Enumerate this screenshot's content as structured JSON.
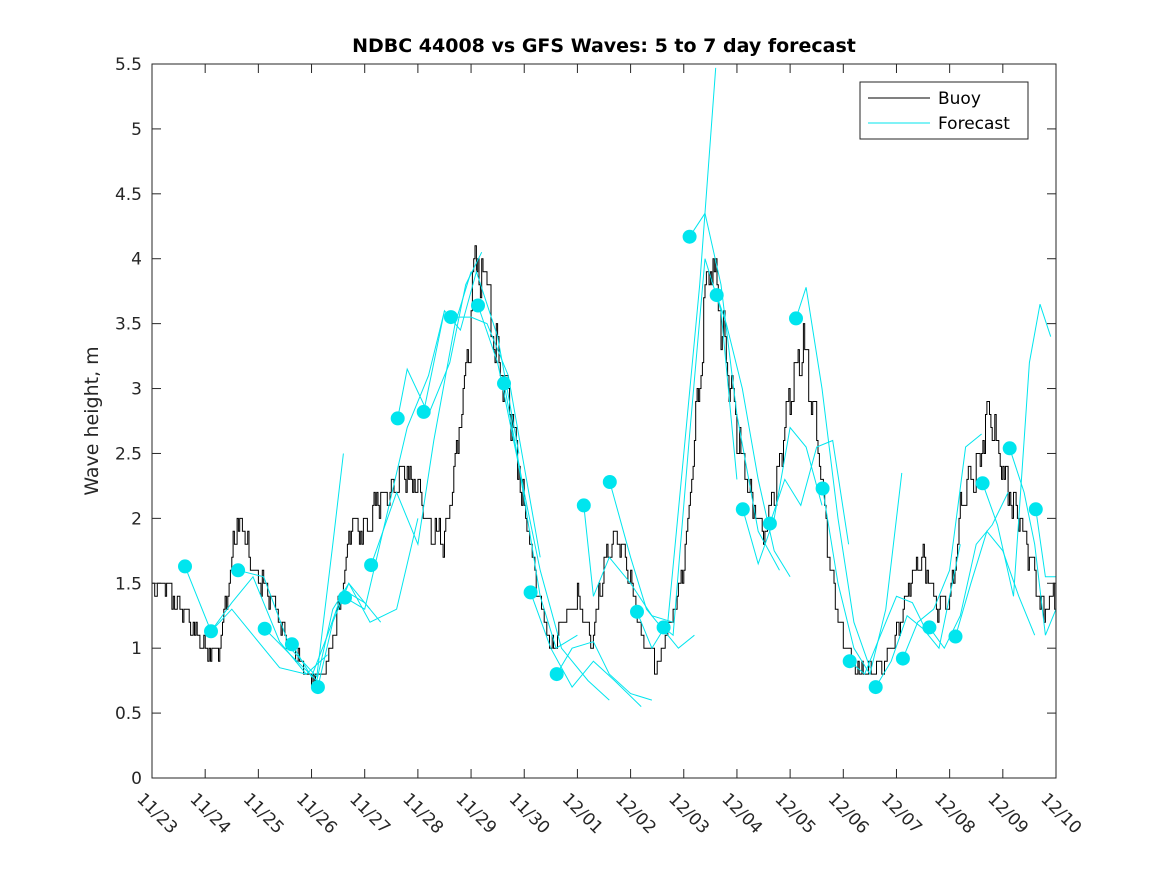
{
  "chart_data": {
    "type": "line",
    "title": "NDBC 44008 vs GFS Waves: 5 to 7 day forecast",
    "xlabel": "",
    "ylabel": "Wave height, m",
    "xlim": [
      0,
      17
    ],
    "ylim": [
      0,
      5.5
    ],
    "x_unit": "days since 11/23",
    "x_ticks": [
      0,
      1,
      2,
      3,
      4,
      5,
      6,
      7,
      8,
      9,
      10,
      11,
      12,
      13,
      14,
      15,
      16,
      17
    ],
    "x_tick_labels": [
      "11/23",
      "11/24",
      "11/25",
      "11/26",
      "11/27",
      "11/28",
      "11/29",
      "11/30",
      "12/01",
      "12/02",
      "12/03",
      "12/04",
      "12/05",
      "12/06",
      "12/07",
      "12/08",
      "12/09",
      "12/10"
    ],
    "y_ticks": [
      0,
      0.5,
      1,
      1.5,
      2,
      2.5,
      3,
      3.5,
      4,
      4.5,
      5,
      5.5
    ],
    "y_tick_labels": [
      "0",
      "0.5",
      "1",
      "1.5",
      "2",
      "2.5",
      "3",
      "3.5",
      "4",
      "4.5",
      "5",
      "5.5"
    ],
    "legend": {
      "placement": "top-right",
      "entries": [
        {
          "name": "Buoy",
          "color": "#000000"
        },
        {
          "name": "Forecast",
          "color": "#00E5EE"
        }
      ]
    },
    "series": [
      {
        "name": "Buoy",
        "color": "#000000",
        "x": [
          0,
          0.25,
          0.5,
          0.75,
          1.0,
          1.25,
          1.5,
          1.6,
          1.75,
          2.0,
          2.25,
          2.5,
          2.75,
          3.0,
          3.25,
          3.5,
          3.75,
          4.0,
          4.25,
          4.5,
          4.75,
          5.0,
          5.25,
          5.5,
          5.75,
          6.0,
          6.1,
          6.25,
          6.5,
          6.75,
          7.0,
          7.25,
          7.5,
          7.75,
          8.0,
          8.25,
          8.5,
          8.75,
          9.0,
          9.25,
          9.5,
          9.75,
          10.0,
          10.25,
          10.5,
          10.75,
          11.0,
          11.25,
          11.5,
          11.75,
          12.0,
          12.25,
          12.5,
          12.75,
          13.0,
          13.25,
          13.5,
          13.75,
          14.0,
          14.25,
          14.5,
          14.75,
          15.0,
          15.25,
          15.5,
          15.75,
          16.0,
          16.25,
          16.5,
          16.75,
          17.0
        ],
        "y": [
          1.45,
          1.5,
          1.35,
          1.15,
          1.0,
          0.95,
          1.7,
          2.05,
          1.8,
          1.55,
          1.4,
          1.1,
          0.9,
          0.78,
          0.8,
          1.3,
          1.95,
          1.9,
          2.1,
          2.2,
          2.35,
          2.25,
          1.85,
          1.85,
          2.6,
          3.5,
          4.1,
          3.8,
          3.3,
          2.8,
          2.1,
          1.4,
          1.0,
          1.2,
          1.4,
          1.05,
          1.6,
          1.9,
          1.5,
          1.05,
          0.85,
          1.2,
          1.6,
          2.9,
          4.1,
          3.4,
          2.6,
          2.2,
          1.85,
          2.3,
          3.0,
          3.3,
          2.7,
          1.6,
          1.05,
          0.82,
          0.85,
          0.85,
          1.15,
          1.45,
          1.7,
          1.3,
          1.35,
          2.2,
          2.4,
          2.85,
          2.3,
          2.1,
          1.7,
          1.3,
          1.4
        ]
      }
    ],
    "forecast_markers": {
      "color": "#00E5EE",
      "x": [
        0.62,
        1.11,
        1.62,
        2.12,
        2.63,
        3.12,
        3.63,
        4.12,
        4.62,
        5.11,
        5.62,
        6.13,
        6.62,
        7.12,
        7.61,
        8.12,
        8.61,
        9.12,
        9.62,
        10.11,
        10.62,
        11.11,
        11.62,
        12.11,
        12.61,
        13.12,
        13.61,
        14.12,
        14.62,
        15.11,
        15.62,
        16.13,
        16.62
      ],
      "y": [
        1.63,
        1.13,
        1.6,
        1.15,
        1.03,
        0.7,
        1.39,
        1.64,
        2.77,
        2.82,
        3.55,
        3.64,
        3.04,
        1.43,
        0.8,
        2.1,
        2.28,
        1.28,
        1.16,
        4.17,
        3.72,
        2.07,
        1.96,
        3.54,
        2.23,
        0.9,
        0.7,
        0.92,
        1.16,
        1.09,
        2.27,
        2.54,
        2.07
      ]
    },
    "forecast_tracks": [
      {
        "x": [
          0.62,
          1.11,
          1.5,
          1.9,
          2.4,
          2.9
        ],
        "y": [
          1.63,
          1.13,
          1.3,
          1.1,
          0.85,
          0.8
        ]
      },
      {
        "x": [
          1.11,
          1.5,
          1.9,
          2.4,
          2.9,
          3.3
        ],
        "y": [
          1.13,
          1.35,
          1.55,
          1.05,
          0.8,
          0.95
        ]
      },
      {
        "x": [
          1.62,
          2.1,
          2.6,
          3.1,
          3.4,
          3.6
        ],
        "y": [
          1.6,
          1.55,
          1.0,
          0.78,
          1.8,
          2.5
        ]
      },
      {
        "x": [
          2.12,
          2.6,
          3.1,
          3.4,
          3.7,
          4.1
        ],
        "y": [
          1.15,
          0.95,
          0.75,
          1.3,
          1.5,
          1.3
        ]
      },
      {
        "x": [
          2.63,
          3.0,
          3.3,
          3.6,
          4.0,
          4.3
        ],
        "y": [
          1.03,
          0.78,
          1.1,
          1.45,
          1.35,
          1.2
        ]
      },
      {
        "x": [
          3.12,
          3.4,
          3.7,
          4.1,
          4.6,
          5.0
        ],
        "y": [
          0.7,
          1.2,
          1.5,
          1.2,
          1.3,
          2.0
        ]
      },
      {
        "x": [
          3.63,
          4.0,
          4.4,
          4.8,
          5.2,
          5.5
        ],
        "y": [
          1.39,
          1.3,
          2.0,
          2.7,
          3.1,
          3.6
        ]
      },
      {
        "x": [
          4.12,
          4.6,
          5.0,
          5.3,
          5.7,
          6.0
        ],
        "y": [
          1.64,
          2.2,
          1.8,
          2.6,
          3.5,
          3.9
        ]
      },
      {
        "x": [
          4.62,
          4.8,
          5.2,
          5.6,
          5.9,
          6.2
        ],
        "y": [
          2.77,
          3.15,
          2.8,
          3.2,
          3.8,
          4.05
        ]
      },
      {
        "x": [
          5.11,
          5.5,
          5.8,
          6.1,
          6.5,
          6.9
        ],
        "y": [
          2.82,
          3.6,
          3.45,
          3.9,
          3.4,
          2.5
        ]
      },
      {
        "x": [
          5.62,
          6.0,
          6.3,
          6.7,
          7.0,
          7.3
        ],
        "y": [
          3.55,
          3.55,
          3.5,
          3.1,
          2.4,
          1.7
        ]
      },
      {
        "x": [
          6.13,
          6.5,
          6.9,
          7.3,
          7.6,
          8.0
        ],
        "y": [
          3.64,
          3.2,
          2.4,
          1.4,
          1.0,
          1.1
        ]
      },
      {
        "x": [
          6.62,
          7.0,
          7.3,
          7.7,
          8.2,
          8.6
        ],
        "y": [
          3.04,
          2.2,
          1.6,
          1.0,
          0.75,
          0.6
        ]
      },
      {
        "x": [
          7.12,
          7.5,
          7.9,
          8.3,
          8.7,
          9.2
        ],
        "y": [
          1.43,
          1.0,
          0.7,
          0.9,
          0.75,
          0.55
        ]
      },
      {
        "x": [
          7.61,
          7.9,
          8.3,
          8.6,
          9.0,
          9.4
        ],
        "y": [
          0.8,
          1.0,
          1.05,
          0.8,
          0.65,
          0.6
        ]
      },
      {
        "x": [
          8.12,
          8.3,
          8.6,
          9.0,
          9.4,
          9.8
        ],
        "y": [
          2.1,
          1.4,
          1.7,
          1.5,
          1.25,
          1.2
        ]
      },
      {
        "x": [
          8.61,
          9.0,
          9.3,
          9.6,
          9.9,
          10.2
        ],
        "y": [
          2.28,
          1.7,
          1.3,
          1.15,
          1.0,
          1.1
        ]
      },
      {
        "x": [
          9.12,
          9.4,
          9.7,
          10.0,
          10.3,
          10.6
        ],
        "y": [
          1.28,
          1.0,
          1.2,
          2.5,
          3.8,
          5.47
        ]
      },
      {
        "x": [
          9.62,
          9.8,
          10.1,
          10.4,
          10.7,
          11.0
        ],
        "y": [
          1.16,
          1.1,
          2.6,
          4.0,
          3.6,
          2.3
        ]
      },
      {
        "x": [
          10.11,
          10.4,
          10.7,
          11.0,
          11.4,
          11.8
        ],
        "y": [
          4.17,
          4.35,
          3.8,
          2.8,
          1.9,
          1.6
        ]
      },
      {
        "x": [
          10.62,
          10.8,
          11.1,
          11.4,
          11.7,
          12.0
        ],
        "y": [
          3.72,
          3.5,
          3.0,
          2.3,
          1.75,
          1.55
        ]
      },
      {
        "x": [
          11.11,
          11.4,
          11.7,
          12.0,
          12.3,
          12.6
        ],
        "y": [
          2.07,
          1.65,
          2.0,
          2.7,
          2.55,
          2.1
        ]
      },
      {
        "x": [
          11.62,
          11.9,
          12.2,
          12.5,
          12.8,
          13.1
        ],
        "y": [
          1.96,
          2.3,
          2.1,
          2.55,
          2.6,
          1.8
        ]
      },
      {
        "x": [
          12.11,
          12.3,
          12.6,
          12.9,
          13.2,
          13.5
        ],
        "y": [
          3.54,
          3.78,
          3.0,
          2.0,
          1.2,
          0.85
        ]
      },
      {
        "x": [
          12.61,
          12.9,
          13.2,
          13.5,
          13.8,
          14.1
        ],
        "y": [
          2.23,
          1.5,
          1.0,
          0.8,
          1.3,
          2.35
        ]
      },
      {
        "x": [
          13.12,
          13.4,
          13.7,
          14.0,
          14.3,
          14.6
        ],
        "y": [
          0.9,
          0.8,
          1.1,
          1.4,
          1.35,
          1.1
        ]
      },
      {
        "x": [
          13.61,
          13.9,
          14.2,
          14.5,
          14.8,
          15.2
        ],
        "y": [
          0.7,
          0.9,
          1.25,
          1.15,
          1.0,
          1.8
        ]
      },
      {
        "x": [
          14.12,
          14.4,
          14.7,
          15.0,
          15.3,
          15.6
        ],
        "y": [
          0.92,
          1.2,
          1.3,
          1.6,
          2.55,
          2.65
        ]
      },
      {
        "x": [
          14.62,
          14.9,
          15.2,
          15.5,
          15.8,
          16.1
        ],
        "y": [
          1.16,
          1.0,
          1.25,
          1.8,
          1.95,
          2.2
        ]
      },
      {
        "x": [
          15.11,
          15.4,
          15.7,
          16.0,
          16.3,
          16.6
        ],
        "y": [
          1.09,
          1.5,
          1.9,
          1.75,
          1.4,
          1.1
        ]
      },
      {
        "x": [
          15.62,
          15.9,
          16.2,
          16.5,
          16.7,
          16.9
        ],
        "y": [
          2.27,
          1.95,
          1.4,
          3.2,
          3.65,
          3.4
        ]
      },
      {
        "x": [
          16.13,
          16.4,
          16.6,
          16.8,
          17.0
        ],
        "y": [
          2.54,
          2.2,
          1.8,
          1.1,
          1.3
        ]
      },
      {
        "x": [
          16.62,
          16.8,
          17.0
        ],
        "y": [
          2.07,
          1.55,
          1.55
        ]
      }
    ]
  }
}
